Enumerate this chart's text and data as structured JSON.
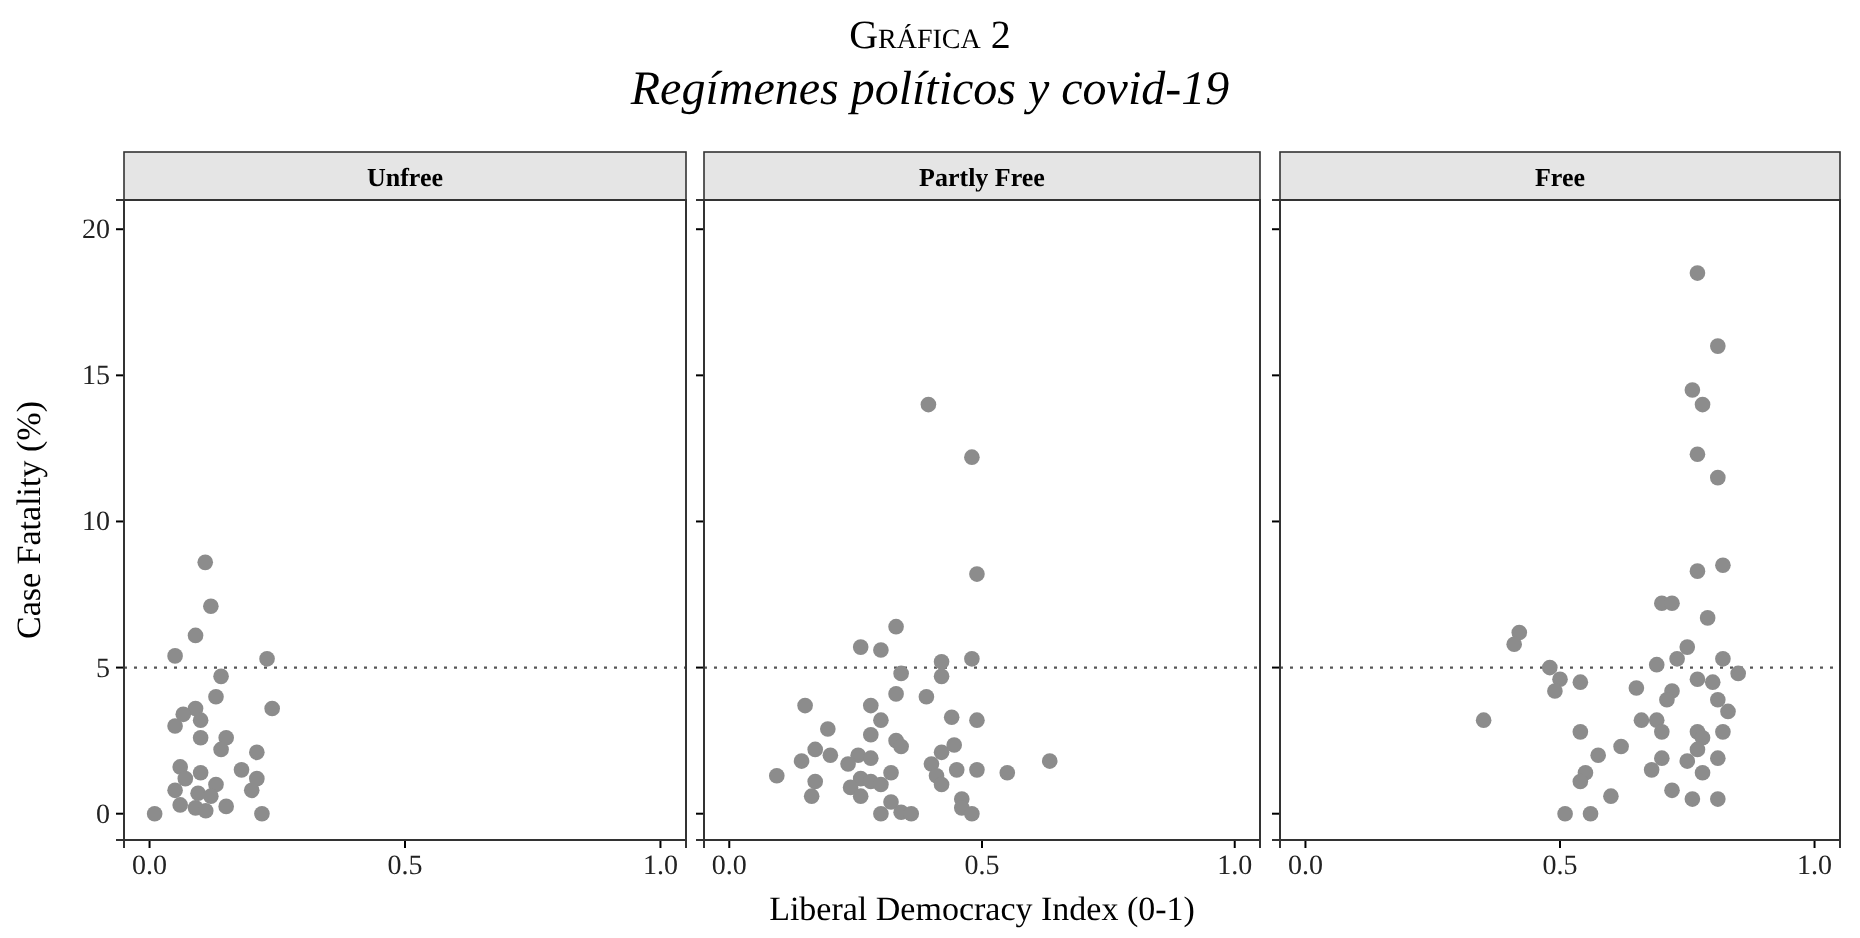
{
  "chart_data": [
    {
      "type": "scatter",
      "title": "Unfree",
      "annotations": [
        "Gráfica 2",
        "Regímenes políticos y covid-19"
      ],
      "ylabel": "Case Fatality (%)",
      "xlim": [
        -0.05,
        1.05
      ],
      "ylim": [
        -0.9,
        21
      ],
      "xticks": [
        {
          "value": 0,
          "label": "0.0"
        },
        {
          "value": 0.5,
          "label": "0.5"
        },
        {
          "value": 1,
          "label": "1.0"
        }
      ],
      "yticks": [
        0,
        5,
        10,
        15,
        20
      ],
      "marker": "circle",
      "ref_lines": [
        {
          "axis": "y",
          "value": 5,
          "line_style": "dotted",
          "color": "#555555"
        }
      ],
      "series": [
        {
          "color": "#8c8c8c",
          "x": [
            0.109,
            0.12,
            0.09,
            0.05,
            0.23,
            0.14,
            0.13,
            0.24,
            0.09,
            0.066,
            0.05,
            0.1,
            0.1,
            0.15,
            0.14,
            0.21,
            0.18,
            0.06,
            0.1,
            0.07,
            0.21,
            0.13,
            0.05,
            0.2,
            0.095,
            0.12,
            0.06,
            0.15,
            0.09,
            0.11,
            0.01,
            0.22
          ],
          "values": [
            8.6,
            7.1,
            6.1,
            5.4,
            5.3,
            4.7,
            4.0,
            3.6,
            3.6,
            3.4,
            3.0,
            3.2,
            2.6,
            2.6,
            2.2,
            2.1,
            1.5,
            1.6,
            1.4,
            1.2,
            1.2,
            1.0,
            0.8,
            0.8,
            0.7,
            0.6,
            0.3,
            0.25,
            0.2,
            0.1,
            0,
            0
          ]
        }
      ]
    },
    {
      "type": "scatter",
      "title": "Partly Free",
      "xlabel": "Liberal Democracy Index (0-1)",
      "tick_labels": "x",
      "xlim": [
        -0.05,
        1.05
      ],
      "ylim": [
        -0.9,
        21
      ],
      "xticks": [
        {
          "value": 0,
          "label": "0.0"
        },
        {
          "value": 0.5,
          "label": "0.5"
        },
        {
          "value": 1,
          "label": "1.0"
        }
      ],
      "yticks": [
        0,
        5,
        10,
        15,
        20
      ],
      "marker": "circle",
      "ref_lines": [
        {
          "axis": "y",
          "value": 5,
          "line_style": "dotted",
          "color": "#555555"
        }
      ],
      "series": [
        {
          "color": "#8c8c8c",
          "x": [
            0.394,
            0.48,
            0.49,
            0.33,
            0.26,
            0.3,
            0.42,
            0.48,
            0.34,
            0.42,
            0.33,
            0.39,
            0.15,
            0.28,
            0.44,
            0.49,
            0.3,
            0.195,
            0.28,
            0.33,
            0.34,
            0.17,
            0.445,
            0.42,
            0.2,
            0.255,
            0.28,
            0.143,
            0.235,
            0.4,
            0.634,
            0.45,
            0.49,
            0.55,
            0.094,
            0.32,
            0.41,
            0.17,
            0.26,
            0.28,
            0.3,
            0.42,
            0.24,
            0.26,
            0.163,
            0.32,
            0.46,
            0.46,
            0.3,
            0.34,
            0.36,
            0.48
          ],
          "values": [
            14.0,
            12.2,
            8.2,
            6.4,
            5.7,
            5.6,
            5.2,
            5.3,
            4.8,
            4.7,
            4.1,
            4.0,
            3.7,
            3.7,
            3.3,
            3.2,
            3.2,
            2.9,
            2.7,
            2.5,
            2.3,
            2.2,
            2.35,
            2.1,
            2.0,
            2.0,
            1.9,
            1.8,
            1.7,
            1.7,
            1.8,
            1.5,
            1.5,
            1.4,
            1.3,
            1.4,
            1.3,
            1.1,
            1.2,
            1.1,
            1.0,
            1.0,
            0.9,
            0.6,
            0.6,
            0.4,
            0.5,
            0.2,
            0,
            0.05,
            0,
            0
          ]
        }
      ]
    },
    {
      "type": "scatter",
      "title": "Free",
      "tick_labels": "x",
      "xlim": [
        -0.05,
        1.05
      ],
      "ylim": [
        -0.9,
        21
      ],
      "xticks": [
        {
          "value": 0,
          "label": "0.0"
        },
        {
          "value": 0.5,
          "label": "0.5"
        },
        {
          "value": 1,
          "label": "1.0"
        }
      ],
      "yticks": [
        0,
        5,
        10,
        15,
        20
      ],
      "marker": "circle",
      "ref_lines": [
        {
          "axis": "y",
          "value": 5,
          "line_style": "dotted",
          "color": "#555555"
        }
      ],
      "series": [
        {
          "color": "#8c8c8c",
          "x": [
            0.77,
            0.81,
            0.76,
            0.78,
            0.77,
            0.81,
            0.77,
            0.82,
            0.7,
            0.72,
            0.79,
            0.42,
            0.41,
            0.75,
            0.73,
            0.82,
            0.69,
            0.48,
            0.85,
            0.77,
            0.8,
            0.5,
            0.54,
            0.49,
            0.65,
            0.72,
            0.71,
            0.81,
            0.83,
            0.35,
            0.66,
            0.69,
            0.7,
            0.54,
            0.77,
            0.78,
            0.82,
            0.62,
            0.77,
            0.575,
            0.7,
            0.75,
            0.81,
            0.55,
            0.54,
            0.68,
            0.78,
            0.6,
            0.72,
            0.76,
            0.81,
            0.51,
            0.56
          ],
          "values": [
            18.5,
            16.0,
            14.5,
            14.0,
            12.3,
            11.5,
            8.3,
            8.5,
            7.2,
            7.2,
            6.7,
            6.2,
            5.8,
            5.7,
            5.3,
            5.3,
            5.1,
            5.0,
            4.8,
            4.6,
            4.5,
            4.6,
            4.5,
            4.2,
            4.3,
            4.2,
            3.9,
            3.9,
            3.5,
            3.2,
            3.2,
            3.2,
            2.8,
            2.8,
            2.8,
            2.6,
            2.8,
            2.3,
            2.2,
            2.0,
            1.9,
            1.8,
            1.9,
            1.4,
            1.1,
            1.5,
            1.4,
            0.6,
            0.8,
            0.5,
            0.5,
            0,
            0
          ]
        }
      ]
    }
  ]
}
